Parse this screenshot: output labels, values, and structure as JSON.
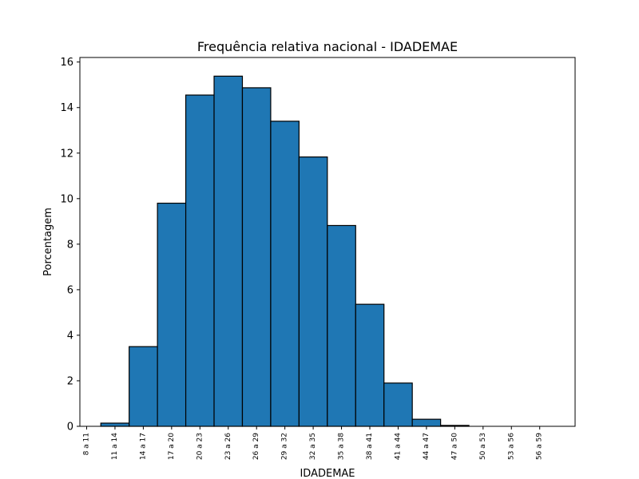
{
  "chart_data": {
    "type": "bar",
    "title": "Frequência relativa nacional - IDADEMAE",
    "xlabel": "IDADEMAE",
    "ylabel": "Porcentagem",
    "categories": [
      "8 a 11",
      "11 a 14",
      "14 a 17",
      "17 a 20",
      "20 a 23",
      "23 a 26",
      "26 a 29",
      "29 a 32",
      "32 a 35",
      "35 a 38",
      "38 a 41",
      "41 a 44",
      "44 a 47",
      "47 a 50",
      "50 a 53",
      "53 a 56",
      "56 a 59"
    ],
    "values": [
      0.0,
      0.14,
      3.5,
      9.8,
      14.55,
      15.38,
      14.87,
      13.4,
      11.83,
      8.82,
      5.36,
      1.9,
      0.31,
      0.04,
      0.0,
      0.0,
      0.0
    ],
    "ylim": [
      0,
      16.2
    ],
    "yticks": [
      0,
      2,
      4,
      6,
      8,
      10,
      12,
      14,
      16
    ],
    "grid": false,
    "legend": "none",
    "bar_color": "#1f77b4",
    "edge_color": "#000000"
  }
}
